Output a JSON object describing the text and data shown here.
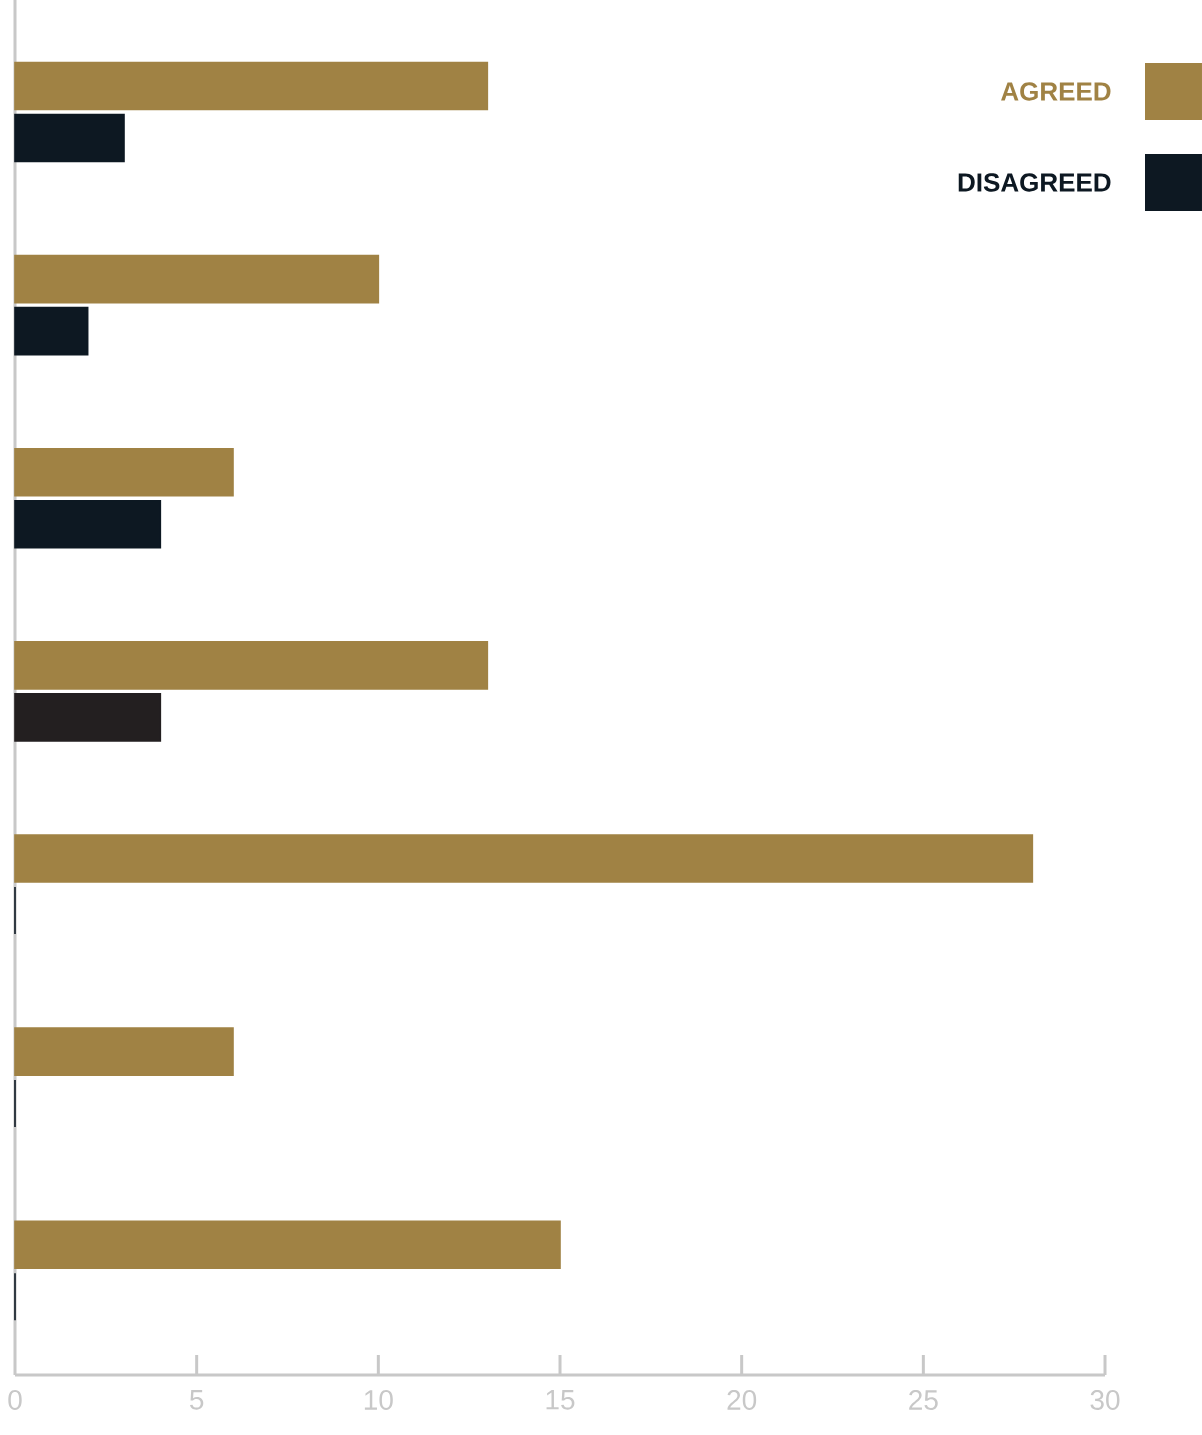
{
  "chart_data": {
    "type": "bar",
    "orientation": "horizontal",
    "categories": [
      null,
      null,
      null,
      null,
      null,
      null,
      null
    ],
    "series": [
      {
        "name": "AGREED",
        "color": "#a08244",
        "values": [
          13,
          10,
          6,
          13,
          28,
          6,
          15
        ]
      },
      {
        "name": "DISAGREED",
        "color": "#0d1822",
        "colors": [
          "#0d1822",
          "#0d1822",
          "#0d1822",
          "#231f20",
          "#0d1822",
          "#0d1822",
          "#0d1822"
        ],
        "values": [
          3,
          2,
          4,
          4,
          0,
          0,
          0
        ]
      }
    ],
    "xlim": [
      0,
      30
    ],
    "xticks": [
      0,
      5,
      10,
      15,
      20,
      25,
      30
    ],
    "legend": "top right"
  }
}
